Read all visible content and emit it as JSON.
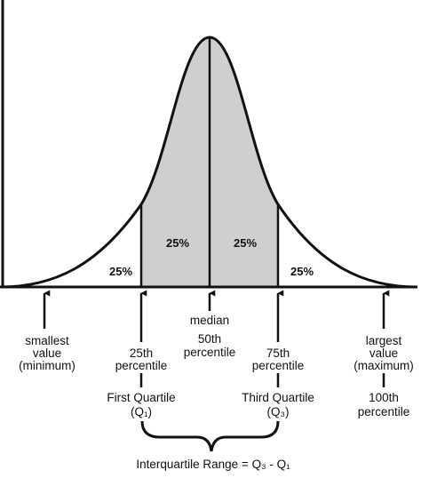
{
  "regions": [
    "25%",
    "25%",
    "25%",
    "25%"
  ],
  "markers": {
    "minimum": [
      "smallest",
      "value",
      "(minimum)"
    ],
    "q1": [
      "25th",
      "percentile",
      "First Quartile",
      "(Q₁)"
    ],
    "median": [
      "median",
      "50th",
      "percentile"
    ],
    "q3": [
      "75th",
      "percentile",
      "Third Quartile",
      "(Q₃)"
    ],
    "maximum": [
      "largest",
      "value",
      "(maximum)",
      "100th",
      "percentile"
    ]
  },
  "iqr": "Interquartile Range = Q₃ - Q₁"
}
